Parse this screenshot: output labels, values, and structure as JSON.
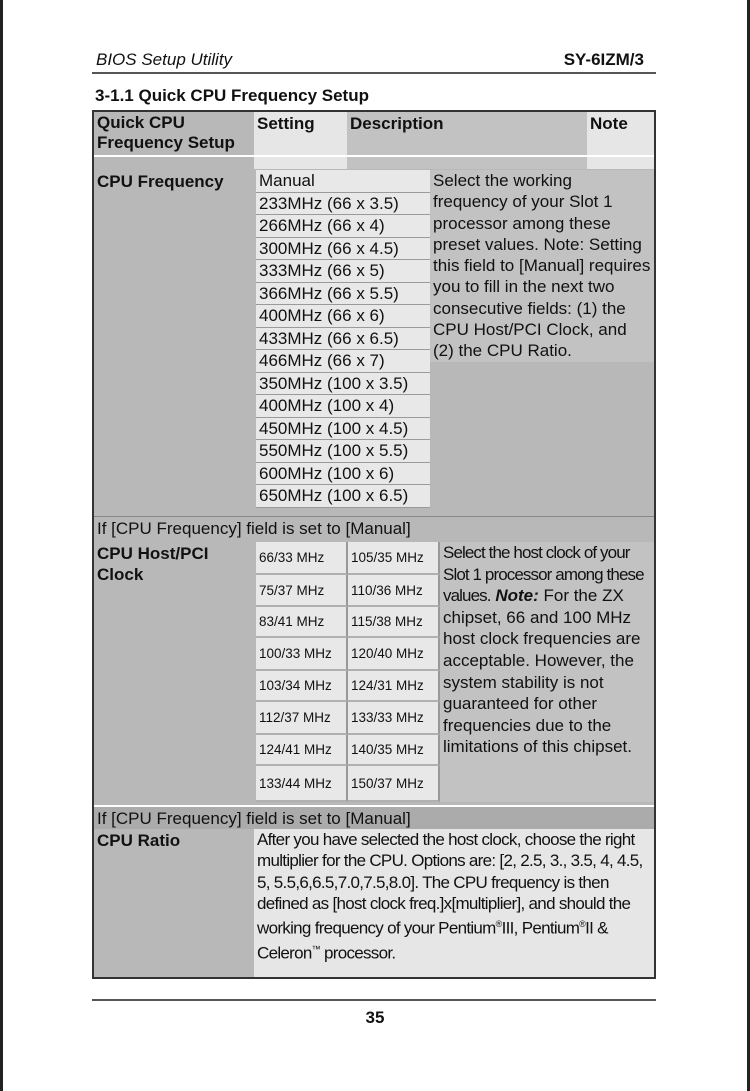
{
  "header": {
    "left": "BIOS Setup Utility",
    "right": "SY-6IZM/3"
  },
  "section_title": "3-1.1  Quick CPU Frequency Setup",
  "table": {
    "columns": [
      "Quick CPU Frequency Setup",
      "Setting",
      "Description",
      "Note"
    ],
    "cpu_frequency": {
      "label": "CPU Frequency",
      "options": [
        "Manual",
        "233MHz (66 x 3.5)",
        "266MHz (66 x 4)",
        "300MHz (66 x 4.5)",
        "333MHz (66 x 5)",
        "366MHz (66 x 5.5)",
        "400MHz (66 x 6)",
        "433MHz (66 x 6.5)",
        "466MHz (66 x 7)",
        "350MHz (100 x 3.5)",
        "400MHz (100 x 4)",
        "450MHz (100 x 4.5)",
        "550MHz (100 x 5.5)",
        "600MHz (100 x 6)",
        "650MHz (100 x 6.5)"
      ],
      "description": "Select the working frequency of your Slot 1 processor among these preset values. Note: Setting this field to [Manual] requires you to fill in the next two consecutive fields: (1) the CPU Host/PCI Clock, and (2) the CPU Ratio."
    },
    "manual_note_1": "If [CPU Frequency] field is set to [Manual]",
    "host_clock": {
      "label": "CPU Host/PCI Clock",
      "col1": [
        "66/33 MHz",
        "75/37 MHz",
        "83/41 MHz",
        "100/33 MHz",
        "103/34 MHz",
        "112/37 MHz",
        "124/41 MHz",
        "133/44 MHz"
      ],
      "col2": [
        "105/35 MHz",
        "110/36 MHz",
        "115/38 MHz",
        "120/40 MHz",
        "124/31 MHz",
        "133/33 MHz",
        "140/35 MHz",
        "150/37 MHz"
      ],
      "description_intro": "Select the host clock of your Slot 1 processor among these values.",
      "note_label": "Note:",
      "note_text": " For the ZX chipset, 66 and 100 MHz host clock frequencies are acceptable. However, the system stability is not guaranteed for other frequencies due to the limitations of this chipset."
    },
    "manual_note_2": "If [CPU Frequency] field is set to [Manual]",
    "cpu_ratio": {
      "label": "CPU Ratio",
      "description_1": "After you have selected the host clock, choose the right multiplier for the CPU. Options are: [2, 2.5, 3., 3.5, 4, 4.5, 5, 5.5,6,6.5,7.0,7.5,8.0]. The CPU frequency is then defined as [host clock freq.]x[multiplier], and should the working frequency of your Pentium",
      "reg1": "®",
      "description_2": "III, Pentium",
      "reg2": "®",
      "description_3": "II & Celeron",
      "tm": "™",
      "description_4": " processor."
    }
  },
  "page_number": "35"
}
